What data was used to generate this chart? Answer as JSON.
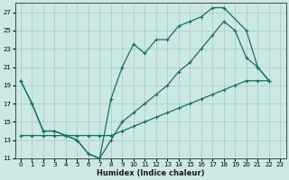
{
  "xlabel": "Humidex (Indice chaleur)",
  "bg_color": "#cce8e4",
  "grid_color": "#aacfcb",
  "line_color": "#1a6b6b",
  "line1_x": [
    0,
    1,
    2,
    3,
    4,
    5,
    6,
    7,
    8,
    9,
    10,
    11,
    12,
    13,
    14,
    15,
    16,
    17,
    18,
    20,
    21,
    22
  ],
  "line1_y": [
    19.5,
    17.0,
    14.0,
    14.0,
    13.5,
    13.0,
    11.5,
    11.0,
    17.5,
    21.0,
    23.5,
    22.5,
    24.0,
    24.0,
    25.5,
    26.0,
    26.5,
    27.5,
    27.5,
    25.0,
    21.0,
    19.5
  ],
  "line2_x": [
    0,
    1,
    2,
    3,
    4,
    5,
    6,
    7,
    8,
    9,
    10,
    11,
    12,
    13,
    14,
    15,
    16,
    17,
    18,
    19,
    20,
    21,
    22
  ],
  "line2_y": [
    19.5,
    17.0,
    14.0,
    14.0,
    13.5,
    13.0,
    11.5,
    11.0,
    13.0,
    15.0,
    16.0,
    17.0,
    18.0,
    19.0,
    20.5,
    21.5,
    23.0,
    24.5,
    26.0,
    25.0,
    22.0,
    21.0,
    19.5
  ],
  "line3_x": [
    0,
    1,
    2,
    3,
    4,
    5,
    6,
    7,
    8,
    9,
    10,
    11,
    12,
    13,
    14,
    15,
    16,
    17,
    18,
    19,
    20,
    21,
    22
  ],
  "line3_y": [
    13.5,
    13.5,
    13.5,
    13.5,
    13.5,
    13.5,
    13.5,
    13.5,
    13.5,
    14.0,
    14.5,
    15.0,
    15.5,
    16.0,
    16.5,
    17.0,
    17.5,
    18.0,
    18.5,
    19.0,
    19.5,
    19.5,
    19.5
  ],
  "xlim": [
    -0.5,
    23.5
  ],
  "ylim": [
    11,
    28
  ],
  "yticks": [
    11,
    13,
    15,
    17,
    19,
    21,
    23,
    25,
    27
  ],
  "xticks": [
    0,
    1,
    2,
    3,
    4,
    5,
    6,
    7,
    8,
    9,
    10,
    11,
    12,
    13,
    14,
    15,
    16,
    17,
    18,
    19,
    20,
    21,
    22,
    23
  ]
}
